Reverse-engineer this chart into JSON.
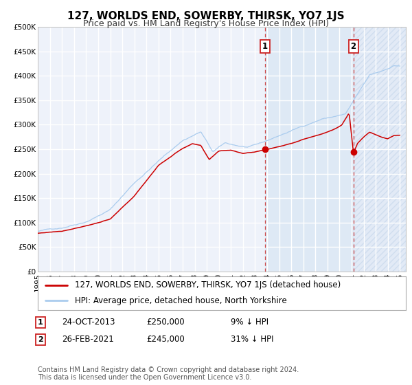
{
  "title": "127, WORLDS END, SOWERBY, THIRSK, YO7 1JS",
  "subtitle": "Price paid vs. HM Land Registry's House Price Index (HPI)",
  "xmin": 1995.0,
  "xmax": 2025.5,
  "ymin": 0,
  "ymax": 500000,
  "yticks": [
    0,
    50000,
    100000,
    150000,
    200000,
    250000,
    300000,
    350000,
    400000,
    450000,
    500000
  ],
  "ytick_labels": [
    "£0",
    "£50K",
    "£100K",
    "£150K",
    "£200K",
    "£250K",
    "£300K",
    "£350K",
    "£400K",
    "£450K",
    "£500K"
  ],
  "background_color": "#eef2fa",
  "grid_color": "#ffffff",
  "red_line_color": "#cc0000",
  "blue_line_color": "#aaccee",
  "sale1_x": 2013.81,
  "sale1_y": 250000,
  "sale1_date": "24-OCT-2013",
  "sale1_price": "£250,000",
  "sale1_pct": "9% ↓ HPI",
  "sale2_x": 2021.15,
  "sale2_y": 245000,
  "sale2_date": "26-FEB-2021",
  "sale2_price": "£245,000",
  "sale2_pct": "31% ↓ HPI",
  "vline_color": "#cc4444",
  "dot_color": "#cc0000",
  "shade1_color": "#dde8f5",
  "shade2_color": "#dde8f5",
  "hatch_color": "#c8d8ec",
  "footer1": "Contains HM Land Registry data © Crown copyright and database right 2024.",
  "footer2": "This data is licensed under the Open Government Licence v3.0.",
  "title_fontsize": 11,
  "subtitle_fontsize": 9,
  "tick_fontsize": 7.5,
  "legend_fontsize": 8.5,
  "annotation_fontsize": 8.5,
  "footer_fontsize": 7
}
